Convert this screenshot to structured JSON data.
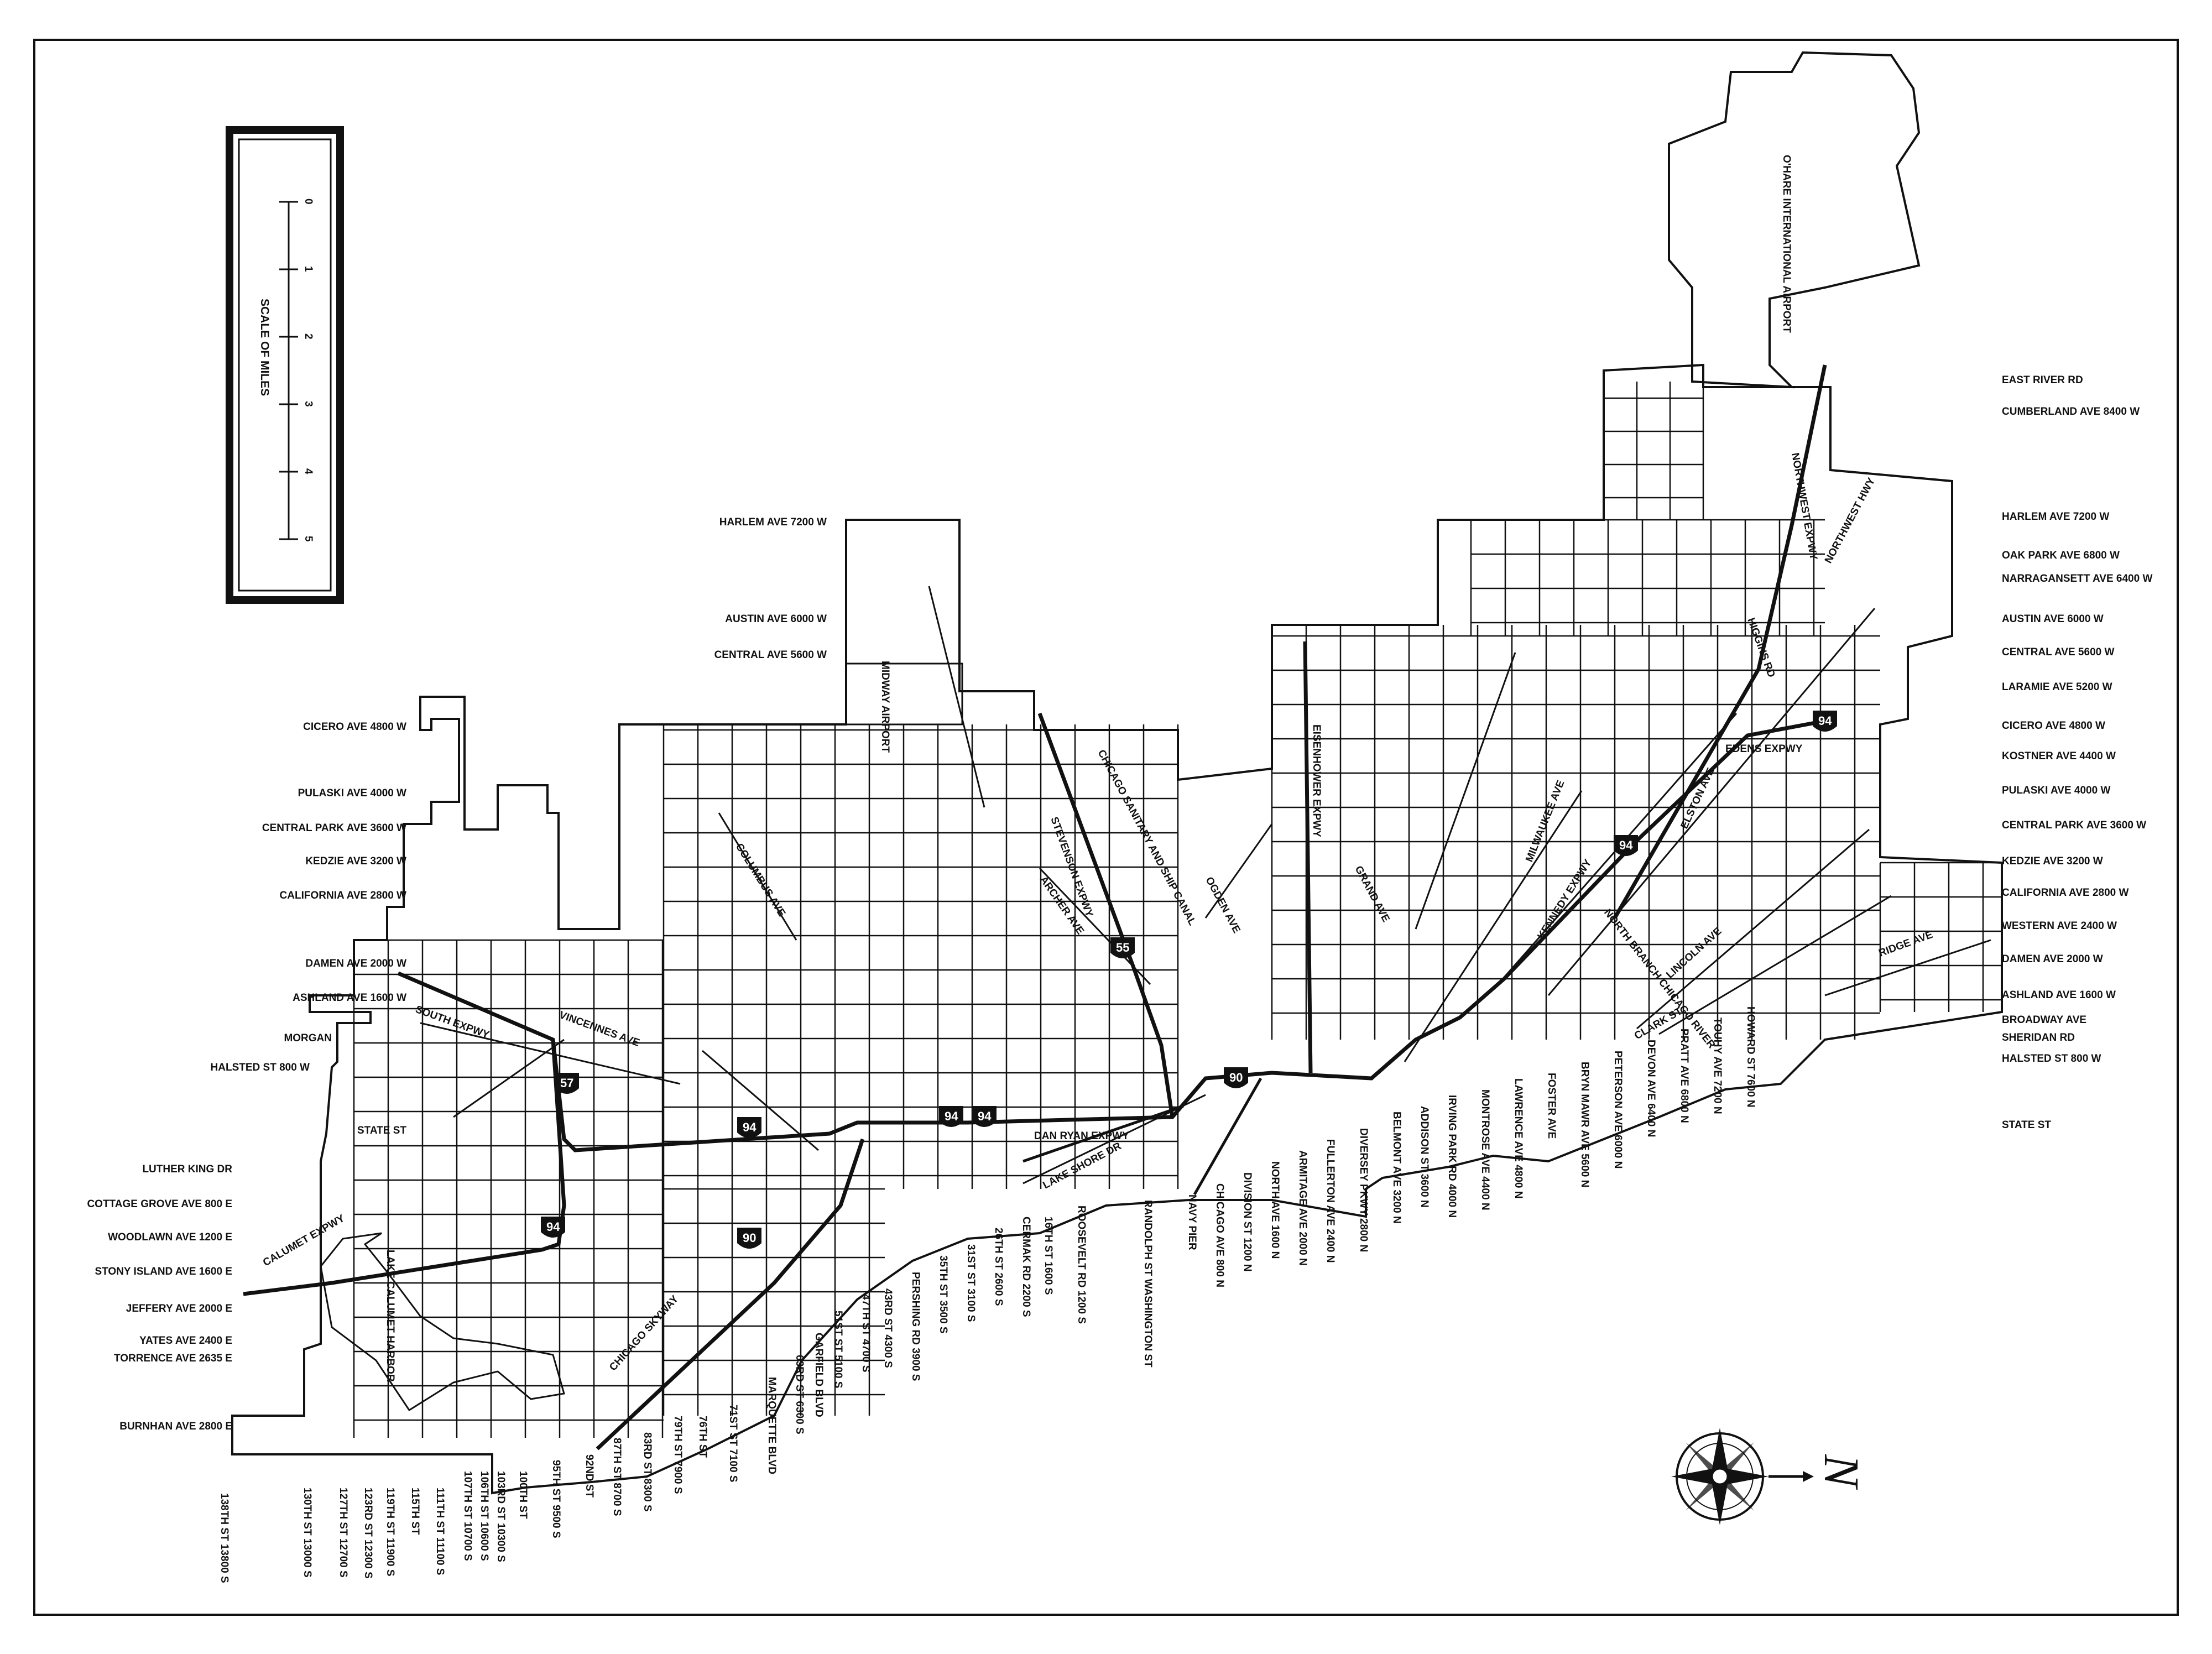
{
  "scale": {
    "title": "SCALE OF MILES",
    "ticks": [
      "0",
      "1",
      "2",
      "3",
      "4",
      "5"
    ]
  },
  "airports": {
    "ohare": "O'HARE INTERNATIONAL AIRPORT",
    "midway": "MIDWAY AIRPORT"
  },
  "water": {
    "lake_calumet": "LAKE CALUMET HARBOR"
  },
  "highways": {
    "south_expy": "SOUTH EXPWY",
    "calumet_expy": "CALUMET EXPWY",
    "stevenson_expy": "STEVENSON EXPWY",
    "eisenhower_expy": "EISENHOWER EXPWY",
    "dan_ryan_expy": "DAN RYAN EXPWY",
    "kennedy_expy": "KENNEDY EXPWY",
    "edens_expy": "EDENS EXPWY",
    "northwest_expy": "NORTHWEST EXPWY",
    "northwest_hwy": "NORTHWEST HWY",
    "chicago_skyway": "CHICAGO SKYWAY",
    "lake_shore_dr": "LAKE SHORE DR",
    "shields": [
      "55",
      "57",
      "94",
      "94",
      "94",
      "90",
      "94",
      "90",
      "94",
      "94"
    ]
  },
  "diagonals": {
    "columbus": "COLUMBUS AVE",
    "archer": "ARCHER AVE",
    "ogden": "OGDEN AVE",
    "canal": "CHICAGO SANITARY AND SHIP CANAL",
    "grand": "GRAND AVE",
    "milwaukee": "MILWAUKEE AVE",
    "elston": "ELSTON AVE",
    "north_branch": "NORTH BRANCH CHICAGO RIVER",
    "lincoln": "LINCOLN AVE",
    "clark": "CLARK ST",
    "ridge": "RIDGE AVE",
    "higgins": "HIGGINS RD",
    "vincennes": "VINCENNES AVE"
  },
  "west_labels_upper": [
    "HARLEM AVE 7200 W",
    "AUSTIN AVE 6000 W",
    "CENTRAL AVE 5600 W"
  ],
  "west_labels_left": [
    "CICERO AVE 4800 W",
    "PULASKI AVE 4000 W",
    "CENTRAL PARK AVE 3600 W",
    "KEDZIE AVE 3200 W",
    "CALIFORNIA AVE 2800 W",
    "DAMEN AVE 2000 W",
    "ASHLAND AVE 1600 W",
    "MORGAN",
    "HALSTED ST 800 W",
    "STATE ST"
  ],
  "east_labels_left": [
    "LUTHER KING DR",
    "COTTAGE GROVE AVE 800 E",
    "WOODLAWN AVE 1200 E",
    "STONY ISLAND AVE 1600 E",
    "JEFFERY AVE 2000 E",
    "YATES AVE 2400 E",
    "TORRENCE AVE 2635 E",
    "BURNHAN AVE 2800 E"
  ],
  "right_labels": [
    "EAST RIVER RD",
    "CUMBERLAND AVE 8400 W",
    "HARLEM AVE 7200 W",
    "OAK PARK AVE 6800 W",
    "NARRAGANSETT AVE 6400 W",
    "AUSTIN AVE 6000 W",
    "CENTRAL AVE 5600 W",
    "LARAMIE AVE 5200 W",
    "CICERO AVE 4800 W",
    "KOSTNER AVE 4400 W",
    "PULASKI AVE 4000 W",
    "CENTRAL PARK AVE 3600 W",
    "KEDZIE AVE 3200 W",
    "CALIFORNIA AVE 2800 W",
    "WESTERN AVE 2400 W",
    "DAMEN AVE 2000 W",
    "ASHLAND AVE 1600 W",
    "BROADWAY AVE",
    "SHERIDAN RD",
    "HALSTED ST 800 W",
    "STATE ST"
  ],
  "bottom_labels": [
    "138TH ST 13800 S",
    "130TH ST 13000 S",
    "127TH ST 12700 S",
    "123RD ST 12300 S",
    "119TH ST 11900 S",
    "115TH ST",
    "111TH ST 11100 S",
    "107TH ST 10700 S",
    "106TH ST 10600 S",
    "103RD ST 10300 S",
    "100TH ST",
    "95TH ST 9500 S",
    "92ND ST",
    "87TH ST 8700 S",
    "83RD ST 8300 S",
    "79TH ST 7900 S",
    "76TH ST",
    "71ST ST 7100 S",
    "MARQUETTE BLVD",
    "63RD ST 6300 S",
    "GARFIELD BLVD",
    "51ST ST 5100 S",
    "47TH ST 4700 S",
    "43RD ST 4300 S",
    "PERSHING RD 3900 S",
    "35TH ST 3500 S",
    "31ST ST 3100 S",
    "26TH ST 2600 S",
    "CERMAK RD 2200 S",
    "16TH ST 1600 S",
    "ROOSEVELT RD 1200 S",
    "RANDOLPH ST WASHINGTON ST",
    "NAVY PIER",
    "CHICAGO AVE 800 N",
    "DIVISION ST 1200 N",
    "NORTH AVE 1600 N",
    "ARMITAGE AVE 2000 N",
    "FULLERTON AVE 2400 N",
    "DIVERSEY PKWY 2800 N",
    "BELMONT AVE 3200 N",
    "ADDISON ST 3600 N",
    "IRVING PARK RD 4000 N",
    "MONTROSE AVE 4400 N",
    "LAWRENCE AVE 4800 N",
    "FOSTER AVE",
    "BRYN MAWR AVE 5600 N",
    "PETERSON AVE 6000 N",
    "DEVON AVE 6400 N",
    "PRATT AVE 6800 N",
    "TOUHY AVE 7200 N",
    "HOWARD ST 7600 N"
  ],
  "compass_letter": "N"
}
